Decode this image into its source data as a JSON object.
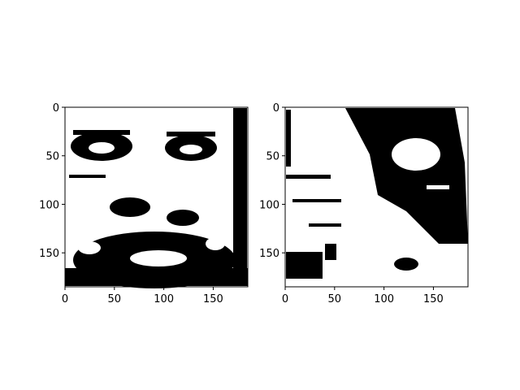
{
  "figure": {
    "background": "#ffffff"
  },
  "chart_data": [
    {
      "type": "heatmap",
      "title": "",
      "xlabel": "",
      "ylabel": "",
      "image_size": [
        185,
        185
      ],
      "xlim": [
        0,
        185
      ],
      "ylim": [
        185,
        0
      ],
      "x_ticks": [
        0,
        50,
        100,
        150
      ],
      "y_ticks": [
        0,
        50,
        100,
        150
      ],
      "grid": false,
      "colormap": [
        "#000000",
        "#ffffff"
      ],
      "content": "binary (black/white) thresholded image of a bearded man's face with eyes near row 50"
    },
    {
      "type": "heatmap",
      "title": "",
      "xlabel": "",
      "ylabel": "",
      "image_size": [
        185,
        185
      ],
      "xlim": [
        0,
        185
      ],
      "ylim": [
        185,
        0
      ],
      "x_ticks": [
        0,
        50,
        100,
        150
      ],
      "y_ticks": [
        0,
        50,
        100,
        150
      ],
      "grid": false,
      "colormap": [
        "#000000",
        "#ffffff"
      ],
      "content": "binary (black/white) noisy image with large black region in upper right"
    }
  ]
}
